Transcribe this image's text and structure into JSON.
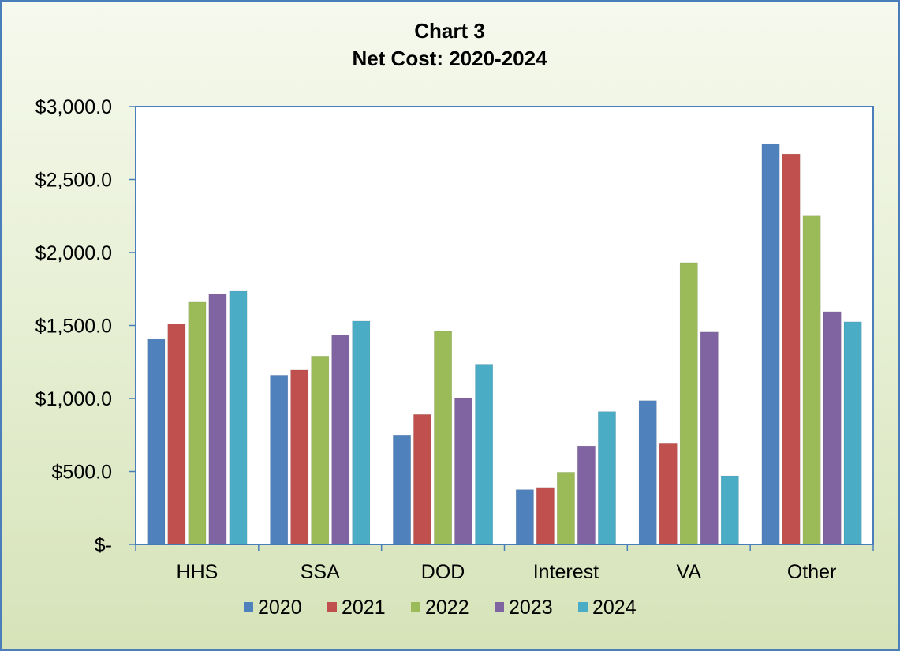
{
  "chart_data": {
    "type": "bar",
    "title": "Chart 3",
    "subtitle": "Net Cost: 2020-2024",
    "categories": [
      "HHS",
      "SSA",
      "DOD",
      "Interest",
      "VA",
      "Other"
    ],
    "series": [
      {
        "name": "2020",
        "color": "#4f81bd",
        "values": [
          1410,
          1160,
          750,
          375,
          985,
          2745
        ]
      },
      {
        "name": "2021",
        "color": "#c0504d",
        "values": [
          1510,
          1195,
          890,
          390,
          690,
          2675
        ]
      },
      {
        "name": "2022",
        "color": "#9bbb59",
        "values": [
          1660,
          1290,
          1460,
          495,
          1930,
          2250
        ]
      },
      {
        "name": "2023",
        "color": "#8064a2",
        "values": [
          1715,
          1435,
          1000,
          675,
          1455,
          1595
        ]
      },
      {
        "name": "2024",
        "color": "#4bacc6",
        "values": [
          1735,
          1530,
          1235,
          910,
          470,
          1525
        ]
      }
    ],
    "yticks": [
      {
        "value": 0,
        "label": "$-"
      },
      {
        "value": 500,
        "label": "$500.0"
      },
      {
        "value": 1000,
        "label": "$1,000.0"
      },
      {
        "value": 1500,
        "label": "$1,500.0"
      },
      {
        "value": 2000,
        "label": "$2,000.0"
      },
      {
        "value": 2500,
        "label": "$2,500.0"
      },
      {
        "value": 3000,
        "label": "$3,000.0"
      }
    ],
    "ylim": [
      0,
      3000
    ],
    "xlabel": "",
    "ylabel": "",
    "grid": false,
    "legend": "bottom"
  }
}
